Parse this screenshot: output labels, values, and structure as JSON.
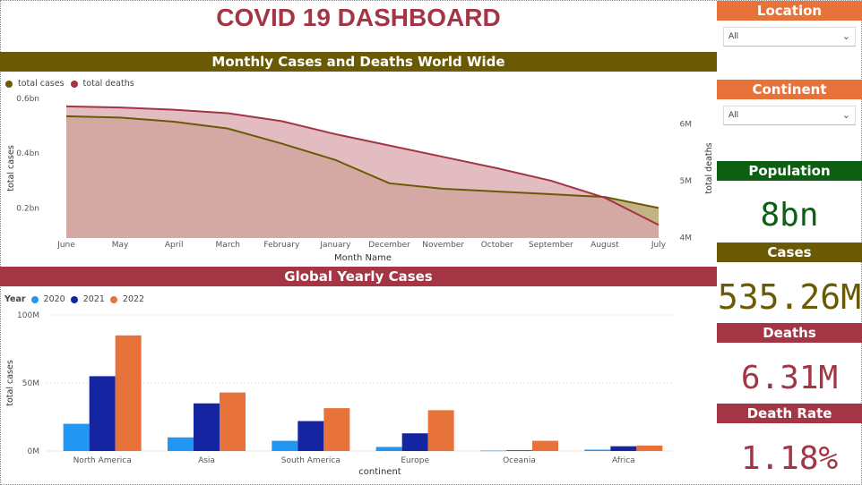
{
  "dashboard": {
    "title": "COVID 19 DASHBOARD"
  },
  "filters": {
    "location": {
      "label": "Location",
      "value": "All"
    },
    "continent": {
      "label": "Continent",
      "value": "All"
    }
  },
  "kpis": {
    "population": {
      "label": "Population",
      "value": "8bn",
      "color": "#0e5e14"
    },
    "cases": {
      "label": "Cases",
      "value": "535.26M",
      "color": "#6b5a05"
    },
    "deaths": {
      "label": "Deaths",
      "value": "6.31M",
      "color": "#a33544"
    },
    "death_rate": {
      "label": "Death Rate",
      "value": "1.18%",
      "color": "#a33544"
    }
  },
  "chart_data": [
    {
      "type": "area",
      "title": "Monthly Cases and Deaths World Wide",
      "xlabel": "Month Name",
      "ylabel": "total cases",
      "y2label": "total deaths",
      "legend": "top-left",
      "categories": [
        "June",
        "May",
        "April",
        "March",
        "February",
        "January",
        "December",
        "November",
        "October",
        "September",
        "August",
        "July"
      ],
      "y_ticks": [
        "0.2bn",
        "0.4bn",
        "0.6bn"
      ],
      "y2_ticks": [
        "4M",
        "5M",
        "6M"
      ],
      "ylim": [
        0.09,
        0.6
      ],
      "y2lim": [
        3.99,
        6.45
      ],
      "series": [
        {
          "name": "total cases",
          "axis": "left",
          "color": "#6b5a05",
          "fill": "#b8a56e",
          "values": [
            0.535,
            0.53,
            0.515,
            0.49,
            0.435,
            0.375,
            0.29,
            0.27,
            0.26,
            0.25,
            0.24,
            0.2
          ]
        },
        {
          "name": "total deaths",
          "axis": "right",
          "color": "#a33544",
          "fill": "#d9a6ae",
          "values": [
            6.31,
            6.29,
            6.25,
            6.19,
            6.05,
            5.82,
            5.62,
            5.42,
            5.22,
            5.0,
            4.7,
            4.22
          ]
        }
      ]
    },
    {
      "type": "bar",
      "title": "Global Yearly Cases",
      "xlabel": "continent",
      "ylabel": "total cases",
      "legend_title": "Year",
      "legend": "top-left",
      "categories": [
        "North America",
        "Asia",
        "South America",
        "Europe",
        "Oceania",
        "Africa"
      ],
      "y_ticks": [
        "0M",
        "50M",
        "100M"
      ],
      "ylim": [
        0,
        100
      ],
      "series": [
        {
          "name": "2020",
          "color": "#2196f3",
          "values": [
            20,
            10,
            7.5,
            3,
            0.3,
            1
          ]
        },
        {
          "name": "2021",
          "color": "#1524a0",
          "values": [
            55,
            35,
            22,
            13,
            0.5,
            3.5
          ]
        },
        {
          "name": "2022",
          "color": "#e8733a",
          "values": [
            85,
            43,
            31.5,
            30,
            7.5,
            4
          ]
        }
      ]
    }
  ]
}
